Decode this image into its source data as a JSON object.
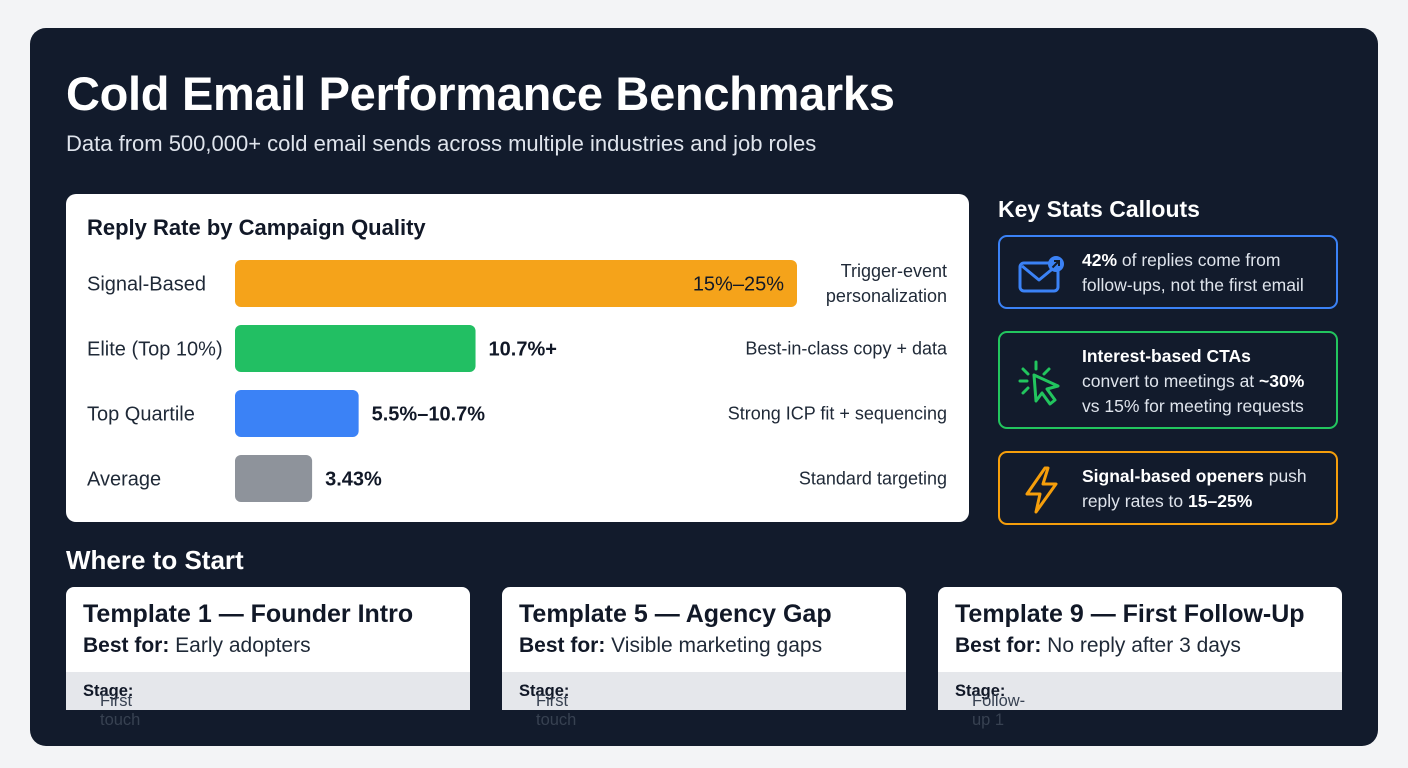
{
  "header": {
    "title": "Cold Email Performance Benchmarks",
    "subtitle": "Data from 500,000+ cold email sends across multiple industries and job roles"
  },
  "chart_data": {
    "type": "bar",
    "orientation": "horizontal",
    "title": "Reply Rate by Campaign Quality",
    "categories": [
      "Signal-Based",
      "Elite (Top 10%)",
      "Top Quartile",
      "Average"
    ],
    "values": [
      25,
      10.7,
      5.5,
      3.43
    ],
    "value_labels": [
      "15%–25%",
      "10.7%+",
      "5.5%–10.7%",
      "3.43%"
    ],
    "descriptions": [
      [
        "Trigger-event",
        "personalization"
      ],
      [
        "Best-in-class copy + data"
      ],
      [
        "Strong ICP fit + sequencing"
      ],
      [
        "Standard targeting"
      ]
    ],
    "colors": [
      "#f5a31a",
      "#22bf63",
      "#3b82f6",
      "#8e939b"
    ],
    "label_inside": [
      true,
      false,
      false,
      false
    ],
    "xlim": [
      0,
      25
    ],
    "grid": false,
    "legend": "none"
  },
  "callouts": {
    "heading": "Key Stats Callouts",
    "items": [
      {
        "icon": "mail-reply-icon",
        "color": "#3b82f6",
        "bold": "42%",
        "text1": " of replies come from",
        "text2": "follow-ups, not the first email"
      },
      {
        "icon": "cursor-click-icon",
        "color": "#22c55e",
        "bold": "Interest-based CTAs",
        "text1": "convert to meetings at ",
        "bold2": "~30%",
        "text2": "vs 15% for meeting requests"
      },
      {
        "icon": "lightning-icon",
        "color": "#f59e0b",
        "bold": "Signal-based openers",
        "text1": " push",
        "text2": "reply rates to ",
        "bold2": "15–25%"
      }
    ]
  },
  "where_to_start": {
    "heading": "Where to Start",
    "best_for_label": "Best for:",
    "stage_label": "Stage:",
    "templates": [
      {
        "title": "Template 1 — Founder Intro",
        "best_for": " Early adopters",
        "stage": " First touch"
      },
      {
        "title": "Template 5 — Agency Gap",
        "best_for": " Visible marketing gaps",
        "stage": " First touch"
      },
      {
        "title": "Template 9 — First Follow-Up",
        "best_for": " No reply after 3 days",
        "stage": " Follow-up 1"
      }
    ]
  }
}
